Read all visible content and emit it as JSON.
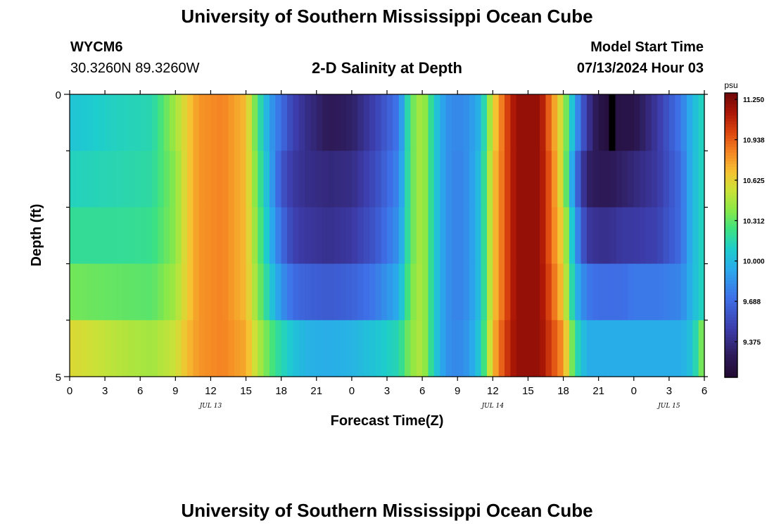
{
  "header": {
    "title": "University of Southern Mississippi Ocean Cube",
    "station_id": "WYCM6",
    "coords": "30.3260N  89.3260W",
    "plot_title": "2-D Salinity at Depth",
    "model_start_label": "Model Start Time",
    "model_start_value": "07/13/2024 Hour 03"
  },
  "footer": {
    "title": "University of Southern Mississippi Ocean Cube"
  },
  "chart_data": {
    "type": "heatmap",
    "title": "2-D Salinity at Depth",
    "xlabel": "Forecast Time(Z)",
    "ylabel": "Depth (ft)",
    "x_tick_labels": [
      "0",
      "3",
      "6",
      "9",
      "12",
      "15",
      "18",
      "21",
      "0",
      "3",
      "6",
      "9",
      "12",
      "15",
      "18",
      "21",
      "0",
      "3",
      "6"
    ],
    "x_range_hours": [
      0,
      54
    ],
    "date_labels": [
      {
        "text": "JUL 13",
        "hour": 12
      },
      {
        "text": "JUL 14",
        "hour": 36
      },
      {
        "text": "JUL 15",
        "hour": 51
      }
    ],
    "y_tick_labels": [
      "0",
      "5"
    ],
    "ylim": [
      0,
      5
    ],
    "depth_layers": 5,
    "colorbar": {
      "unit": "psu",
      "min": 9.1,
      "max": 11.3,
      "labels": [
        "11.250",
        "10.938",
        "10.625",
        "10.312",
        "10.000",
        "9.688",
        "9.375"
      ]
    },
    "salinity_columns": {
      "hours": [
        0,
        4,
        7,
        9,
        10,
        11,
        13,
        15,
        16,
        17,
        18,
        19,
        20,
        22,
        24,
        26,
        28,
        29,
        30,
        31,
        32,
        33,
        34,
        35,
        36,
        37,
        38,
        40,
        41,
        42,
        43,
        44,
        45,
        46,
        47,
        48,
        50,
        52,
        53,
        54
      ],
      "layer_1": [
        10.05,
        10.12,
        10.15,
        10.45,
        10.65,
        10.8,
        10.85,
        10.7,
        10.25,
        9.9,
        9.7,
        9.5,
        9.4,
        9.25,
        9.3,
        9.5,
        9.75,
        10.3,
        10.5,
        10.1,
        9.85,
        9.8,
        9.85,
        10.0,
        10.6,
        10.95,
        11.2,
        11.2,
        10.85,
        10.5,
        9.9,
        9.45,
        9.2,
        9.15,
        9.2,
        9.2,
        9.45,
        9.75,
        10.0,
        10.15
      ],
      "layer_2": [
        10.12,
        10.15,
        10.18,
        10.4,
        10.65,
        10.8,
        10.85,
        10.7,
        10.3,
        9.95,
        9.6,
        9.45,
        9.4,
        9.35,
        9.38,
        9.55,
        9.8,
        10.3,
        10.5,
        10.1,
        9.85,
        9.78,
        9.85,
        10.05,
        10.65,
        10.95,
        11.2,
        11.2,
        10.9,
        10.5,
        9.75,
        9.3,
        9.25,
        9.25,
        9.3,
        9.35,
        9.45,
        9.7,
        10.0,
        10.15
      ],
      "layer_3": [
        10.2,
        10.2,
        10.22,
        10.4,
        10.65,
        10.8,
        10.85,
        10.7,
        10.35,
        10.0,
        9.7,
        9.5,
        9.45,
        9.4,
        9.45,
        9.6,
        9.85,
        10.3,
        10.5,
        10.1,
        9.85,
        9.78,
        9.85,
        10.05,
        10.65,
        10.95,
        11.2,
        11.2,
        10.9,
        10.6,
        9.9,
        9.45,
        9.4,
        9.4,
        9.45,
        9.45,
        9.5,
        9.7,
        10.0,
        10.15
      ],
      "layer_4": [
        10.35,
        10.32,
        10.3,
        10.45,
        10.65,
        10.8,
        10.85,
        10.7,
        10.4,
        10.1,
        9.85,
        9.7,
        9.65,
        9.62,
        9.65,
        9.75,
        9.95,
        10.35,
        10.5,
        10.1,
        9.85,
        9.78,
        9.85,
        10.05,
        10.65,
        10.95,
        11.2,
        11.2,
        10.95,
        10.65,
        10.0,
        9.75,
        9.7,
        9.7,
        9.7,
        9.75,
        9.75,
        9.8,
        10.0,
        10.15
      ],
      "layer_5": [
        10.6,
        10.5,
        10.45,
        10.55,
        10.7,
        10.8,
        10.85,
        10.75,
        10.5,
        10.3,
        10.15,
        10.05,
        9.98,
        9.95,
        9.98,
        10.05,
        10.15,
        10.4,
        10.5,
        10.1,
        9.85,
        9.8,
        9.88,
        10.1,
        10.7,
        11.0,
        11.2,
        11.2,
        11.0,
        10.8,
        10.2,
        9.95,
        9.95,
        9.95,
        9.95,
        9.95,
        9.95,
        9.95,
        10.05,
        10.45
      ]
    },
    "missing_cell": {
      "hour": 46,
      "layer": 1,
      "color": "#000000"
    }
  }
}
